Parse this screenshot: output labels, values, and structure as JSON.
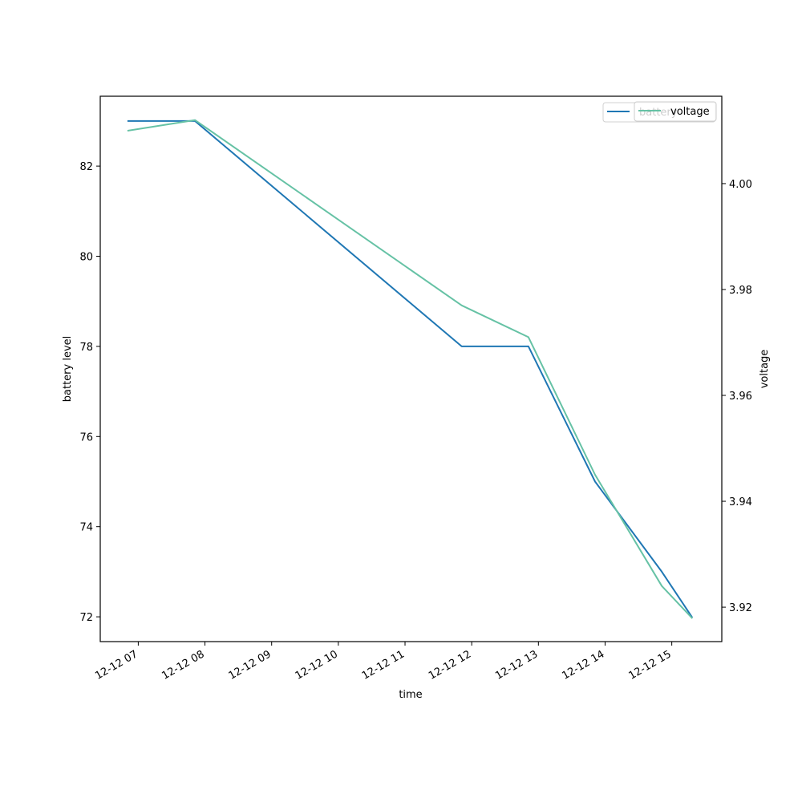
{
  "chart_data": {
    "type": "line",
    "xlabel": "time",
    "ylabel_left": "battery level",
    "ylabel_right": "voltage",
    "x_ticks": [
      {
        "t": 7,
        "label": "12-12 07"
      },
      {
        "t": 8,
        "label": "12-12 08"
      },
      {
        "t": 9,
        "label": "12-12 09"
      },
      {
        "t": 10,
        "label": "12-12 10"
      },
      {
        "t": 11,
        "label": "12-12 11"
      },
      {
        "t": 12,
        "label": "12-12 12"
      },
      {
        "t": 13,
        "label": "12-12 13"
      },
      {
        "t": 14,
        "label": "12-12 14"
      },
      {
        "t": 15,
        "label": "12-12 15"
      }
    ],
    "xlim": [
      6.43,
      15.75
    ],
    "ylim_left": [
      71.45,
      83.55
    ],
    "ylim_right": [
      3.9135,
      4.0165
    ],
    "y_ticks_left": [
      72,
      74,
      76,
      78,
      80,
      82
    ],
    "y_ticks_right": [
      3.92,
      3.94,
      3.96,
      3.98,
      4.0
    ],
    "y_ticks_right_labels": [
      "3.92",
      "3.94",
      "3.96",
      "3.98",
      "4.00"
    ],
    "series": [
      {
        "name": "battery",
        "axis": "left",
        "color": "#1f77b4",
        "x": [
          6.85,
          7.85,
          11.85,
          12.85,
          13.85,
          14.85,
          15.3
        ],
        "values": [
          83,
          83,
          78,
          78,
          75,
          73,
          72
        ]
      },
      {
        "name": "voltage",
        "axis": "right",
        "color": "#66c2a5",
        "x": [
          6.85,
          7.85,
          11.85,
          12.85,
          13.85,
          14.85,
          15.3
        ],
        "values": [
          4.01,
          4.012,
          3.977,
          3.971,
          3.945,
          3.924,
          3.918
        ]
      }
    ],
    "legend": {
      "placement": "top-right",
      "left_entries": [
        "battery"
      ],
      "right_entries": [
        "voltage"
      ]
    }
  }
}
